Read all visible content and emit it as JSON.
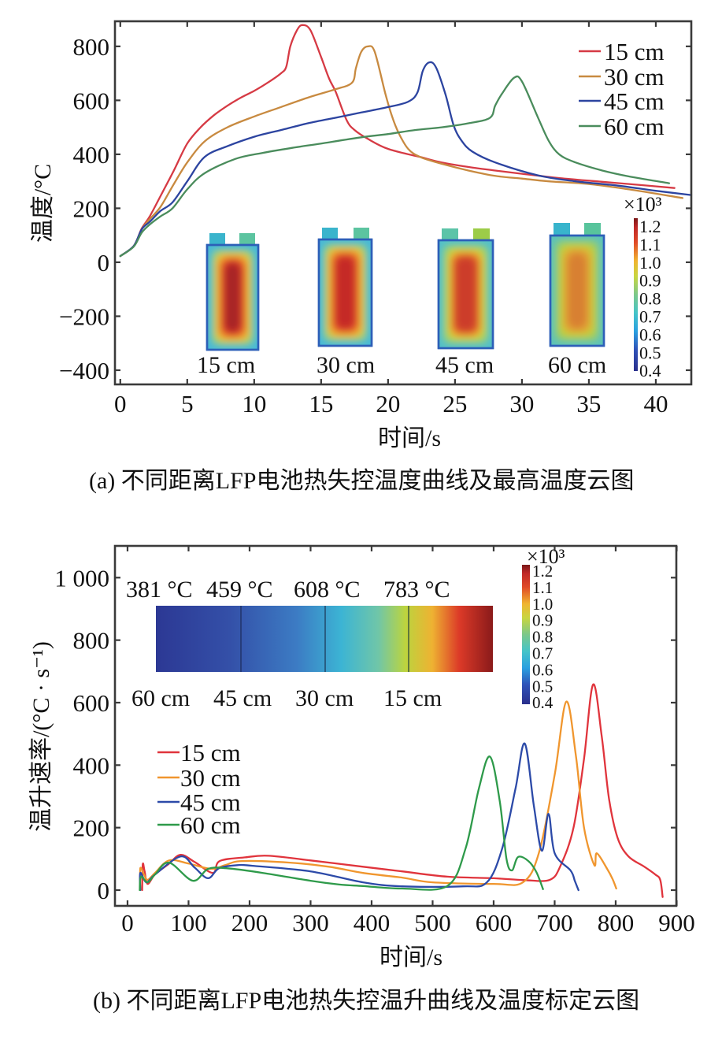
{
  "chart_data": [
    {
      "type": "line",
      "title": "",
      "xlabel": "时间/s",
      "ylabel": "温度/°C",
      "xlim": [
        -0.4,
        42.65
      ],
      "ylim": [
        -452.6,
        893
      ],
      "grid": false,
      "legend": "top-right",
      "x_ticks": [
        0,
        5,
        10,
        15,
        20,
        25,
        30,
        35,
        40
      ],
      "x_tick_labels": [
        "0",
        "5",
        "10",
        "15",
        "20",
        "25",
        "30",
        "35",
        "40"
      ],
      "y_ticks": [
        -400,
        -200,
        0,
        200,
        400,
        600,
        800
      ],
      "y_tick_labels": [
        "−400",
        "−200",
        "0",
        "200",
        "400",
        "600",
        "800"
      ],
      "series": [
        {
          "name": "15 cm",
          "color": "#d63a44",
          "points": [
            [
              0,
              23
            ],
            [
              1,
              60
            ],
            [
              1.6,
              125
            ],
            [
              2.2,
              170
            ],
            [
              3,
              245
            ],
            [
              4,
              340
            ],
            [
              5,
              440
            ],
            [
              6,
              500
            ],
            [
              7,
              545
            ],
            [
              8,
              580
            ],
            [
              9,
              610
            ],
            [
              10,
              635
            ],
            [
              11,
              665
            ],
            [
              12,
              700
            ],
            [
              12.4,
              725
            ],
            [
              12.7,
              800
            ],
            [
              13.2,
              860
            ],
            [
              13.6,
              879
            ],
            [
              14.2,
              860
            ],
            [
              15,
              760
            ],
            [
              15.6,
              680
            ],
            [
              16.1,
              630
            ],
            [
              16.9,
              527
            ],
            [
              17.5,
              490
            ],
            [
              18.5,
              457
            ],
            [
              20,
              420
            ],
            [
              22.4,
              390
            ],
            [
              24,
              370
            ],
            [
              26.3,
              351
            ],
            [
              28,
              340
            ],
            [
              30,
              328
            ],
            [
              33,
              311
            ],
            [
              36,
              298
            ],
            [
              38,
              290
            ],
            [
              41.4,
              275
            ]
          ]
        },
        {
          "name": "30 cm",
          "color": "#c88a40",
          "points": [
            [
              0,
              23
            ],
            [
              1,
              60
            ],
            [
              1.6,
              122
            ],
            [
              2.2,
              160
            ],
            [
              3,
              205
            ],
            [
              4,
              290
            ],
            [
              5,
              370
            ],
            [
              6.3,
              448
            ],
            [
              8,
              500
            ],
            [
              10,
              540
            ],
            [
              12,
              575
            ],
            [
              14,
              610
            ],
            [
              16,
              640
            ],
            [
              17.3,
              665
            ],
            [
              17.6,
              720
            ],
            [
              18,
              780
            ],
            [
              18.5,
              800
            ],
            [
              19,
              780
            ],
            [
              19.8,
              624
            ],
            [
              20.3,
              540
            ],
            [
              20.8,
              478
            ],
            [
              21.5,
              420
            ],
            [
              22.4,
              390
            ],
            [
              24,
              365
            ],
            [
              26,
              340
            ],
            [
              28,
              320
            ],
            [
              30,
              310
            ],
            [
              32,
              300
            ],
            [
              35,
              290
            ],
            [
              38,
              270
            ],
            [
              42,
              238
            ]
          ]
        },
        {
          "name": "45 cm",
          "color": "#2c44a0",
          "points": [
            [
              0,
              23
            ],
            [
              1,
              60
            ],
            [
              1.6,
              122
            ],
            [
              2.2,
              150
            ],
            [
              3,
              190
            ],
            [
              3.9,
              222
            ],
            [
              5,
              300
            ],
            [
              6.3,
              390
            ],
            [
              8,
              430
            ],
            [
              10,
              465
            ],
            [
              12,
              490
            ],
            [
              14,
              515
            ],
            [
              16,
              535
            ],
            [
              18,
              555
            ],
            [
              20,
              575
            ],
            [
              21.5,
              595
            ],
            [
              22.2,
              630
            ],
            [
              22.6,
              710
            ],
            [
              23.1,
              741
            ],
            [
              23.6,
              720
            ],
            [
              24.3,
              620
            ],
            [
              24.9,
              507
            ],
            [
              25.5,
              450
            ],
            [
              26.3,
              410
            ],
            [
              28,
              370
            ],
            [
              31.2,
              322
            ],
            [
              34,
              300
            ],
            [
              37,
              285
            ],
            [
              40,
              265
            ],
            [
              42.65,
              249
            ]
          ]
        },
        {
          "name": "60 cm",
          "color": "#4a8c5c",
          "points": [
            [
              0,
              23
            ],
            [
              1,
              58
            ],
            [
              1.6,
              110
            ],
            [
              2.2,
              140
            ],
            [
              3,
              170
            ],
            [
              3.9,
              200
            ],
            [
              5,
              270
            ],
            [
              6.3,
              330
            ],
            [
              8.6,
              383
            ],
            [
              10.6,
              405
            ],
            [
              13,
              425
            ],
            [
              15,
              440
            ],
            [
              18,
              463
            ],
            [
              20,
              475
            ],
            [
              22,
              490
            ],
            [
              24,
              500
            ],
            [
              26,
              515
            ],
            [
              27.6,
              535
            ],
            [
              28,
              580
            ],
            [
              28.5,
              624
            ],
            [
              29.4,
              683
            ],
            [
              30,
              670
            ],
            [
              31.2,
              536
            ],
            [
              32,
              450
            ],
            [
              32.8,
              399
            ],
            [
              34,
              370
            ],
            [
              36,
              340
            ],
            [
              38,
              318
            ],
            [
              41,
              293
            ]
          ]
        }
      ]
    },
    {
      "type": "line",
      "title": "",
      "xlabel": "时间/s",
      "ylabel": "温升速率/(°C · s⁻¹)",
      "xlim": [
        -20.6,
        899.4
      ],
      "ylim": [
        -50.4,
        1101.6
      ],
      "grid": false,
      "legend": "center-left",
      "x_ticks": [
        0,
        100,
        200,
        300,
        400,
        500,
        600,
        700,
        800,
        900
      ],
      "x_tick_labels": [
        "0",
        "100",
        "200",
        "300",
        "400",
        "500",
        "600",
        "700",
        "800",
        "900"
      ],
      "y_ticks": [
        0,
        200,
        400,
        600,
        800,
        1000
      ],
      "y_tick_labels": [
        "0",
        "200",
        "400",
        "600",
        "800",
        "1 000"
      ],
      "series": [
        {
          "name": "15 cm",
          "color": "#e0343c",
          "points": [
            [
              24,
              0
            ],
            [
              25,
              83
            ],
            [
              28,
              60
            ],
            [
              33,
              20
            ],
            [
              45,
              50
            ],
            [
              67,
              83
            ],
            [
              87,
              113
            ],
            [
              110,
              90
            ],
            [
              140,
              55
            ],
            [
              151,
              93
            ],
            [
              193,
              105
            ],
            [
              231,
              110
            ],
            [
              300,
              95
            ],
            [
              386,
              75
            ],
            [
              450,
              60
            ],
            [
              524,
              43
            ],
            [
              600,
              38
            ],
            [
              650,
              32
            ],
            [
              692,
              33
            ],
            [
              710,
              80
            ],
            [
              731,
              201
            ],
            [
              748,
              419
            ],
            [
              763,
              658
            ],
            [
              777,
              495
            ],
            [
              789,
              294
            ],
            [
              803,
              168
            ],
            [
              821,
              108
            ],
            [
              847,
              75
            ],
            [
              865,
              50
            ],
            [
              873,
              33
            ],
            [
              877,
              -22
            ]
          ]
        },
        {
          "name": "30 cm",
          "color": "#f0962e",
          "points": [
            [
              21,
              0
            ],
            [
              21,
              70
            ],
            [
              27,
              50
            ],
            [
              33,
              33
            ],
            [
              45,
              55
            ],
            [
              68,
              95
            ],
            [
              100,
              85
            ],
            [
              137,
              68
            ],
            [
              160,
              80
            ],
            [
              188,
              93
            ],
            [
              266,
              88
            ],
            [
              330,
              75
            ],
            [
              386,
              55
            ],
            [
              450,
              40
            ],
            [
              500,
              25
            ],
            [
              600,
              20
            ],
            [
              648,
              25
            ],
            [
              674,
              118
            ],
            [
              700,
              369
            ],
            [
              719,
              603
            ],
            [
              735,
              427
            ],
            [
              748,
              201
            ],
            [
              765,
              80
            ],
            [
              769,
              118
            ],
            [
              786,
              68
            ],
            [
              795,
              35
            ],
            [
              801,
              5
            ]
          ]
        },
        {
          "name": "45 cm",
          "color": "#2c4aa8",
          "points": [
            [
              21,
              0
            ],
            [
              21,
              55
            ],
            [
              31,
              25
            ],
            [
              45,
              50
            ],
            [
              87,
              108
            ],
            [
              110,
              72
            ],
            [
              132,
              38
            ],
            [
              150,
              70
            ],
            [
              180,
              80
            ],
            [
              205,
              78
            ],
            [
              300,
              60
            ],
            [
              386,
              25
            ],
            [
              450,
              12
            ],
            [
              550,
              12
            ],
            [
              589,
              25
            ],
            [
              614,
              133
            ],
            [
              636,
              327
            ],
            [
              651,
              469
            ],
            [
              666,
              269
            ],
            [
              679,
              126
            ],
            [
              690,
              244
            ],
            [
              700,
              118
            ],
            [
              726,
              63
            ],
            [
              733,
              30
            ],
            [
              739,
              0
            ]
          ]
        },
        {
          "name": "60 cm",
          "color": "#2e9a4a",
          "points": [
            [
              20,
              0
            ],
            [
              22,
              43
            ],
            [
              33,
              25
            ],
            [
              45,
              50
            ],
            [
              68,
              88
            ],
            [
              107,
              30
            ],
            [
              132,
              68
            ],
            [
              162,
              70
            ],
            [
              222,
              55
            ],
            [
              300,
              30
            ],
            [
              347,
              18
            ],
            [
              386,
              13
            ],
            [
              450,
              5
            ],
            [
              524,
              13
            ],
            [
              554,
              133
            ],
            [
              576,
              327
            ],
            [
              594,
              427
            ],
            [
              610,
              285
            ],
            [
              621,
              101
            ],
            [
              630,
              63
            ],
            [
              640,
              106
            ],
            [
              657,
              93
            ],
            [
              670,
              58
            ],
            [
              681,
              3
            ]
          ]
        }
      ]
    }
  ],
  "figure_a": {
    "caption": "(a) 不同距离LFP电池热失控温度曲线及最高温度云图",
    "insets": [
      {
        "label": "15 cm"
      },
      {
        "label": "30 cm"
      },
      {
        "label": "45 cm"
      },
      {
        "label": "60 cm"
      }
    ],
    "colorbar": {
      "multiplier": "×10³",
      "tick_labels": [
        "1.2",
        "1.1",
        "1.0",
        "0.9",
        "0.8",
        "0.7",
        "0.6",
        "0.5",
        "0.4"
      ]
    }
  },
  "figure_b": {
    "caption": "(b) 不同距离LFP电池热失控温升曲线及温度标定云图",
    "strip": {
      "temperatures": [
        "381 °C",
        "459 °C",
        "608 °C",
        "783 °C"
      ],
      "positions": [
        "60 cm",
        "45 cm",
        "30 cm",
        "15 cm"
      ]
    },
    "colorbar": {
      "multiplier": "×10³",
      "tick_labels": [
        "1.2",
        "1.1",
        "1.0",
        "0.9",
        "0.8",
        "0.7",
        "0.6",
        "0.5",
        "0.4"
      ]
    }
  }
}
